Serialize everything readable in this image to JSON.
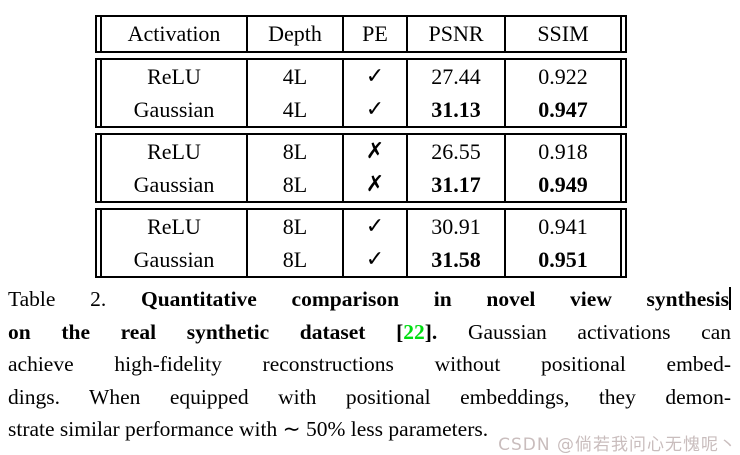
{
  "table": {
    "headers": [
      "Activation",
      "Depth",
      "PE",
      "PSNR",
      "SSIM"
    ],
    "groups": [
      {
        "rows": [
          {
            "activation": "ReLU",
            "depth": "4L",
            "pe": "✓",
            "psnr": "27.44",
            "ssim": "0.922",
            "emphasis": false
          },
          {
            "activation": "Gaussian",
            "depth": "4L",
            "pe": "✓",
            "psnr": "31.13",
            "ssim": "0.947",
            "emphasis": true
          }
        ]
      },
      {
        "rows": [
          {
            "activation": "ReLU",
            "depth": "8L",
            "pe": "✗",
            "psnr": "26.55",
            "ssim": "0.918",
            "emphasis": false
          },
          {
            "activation": "Gaussian",
            "depth": "8L",
            "pe": "✗",
            "psnr": "31.17",
            "ssim": "0.949",
            "emphasis": true
          }
        ]
      },
      {
        "rows": [
          {
            "activation": "ReLU",
            "depth": "8L",
            "pe": "✓",
            "psnr": "30.91",
            "ssim": "0.941",
            "emphasis": false
          },
          {
            "activation": "Gaussian",
            "depth": "8L",
            "pe": "✓",
            "psnr": "31.58",
            "ssim": "0.951",
            "emphasis": true
          }
        ]
      }
    ]
  },
  "caption": {
    "label": "Table 2. ",
    "bold_line1": "Quantitative comparison in novel view synthesis",
    "bold_line2_pre": "on the real synthetic dataset [",
    "cite_number": "22",
    "bold_line2_post": "]. ",
    "line2_rest": "Gaussian activations can",
    "line3": "achieve high-fidelity reconstructions without positional embed-",
    "line4": "dings. When equipped with positional embeddings, they demon-",
    "line5": "strate similar performance with ∼ 50% less parameters."
  },
  "watermark": "CSDN @倘若我问心无愧呢丶",
  "colors": {
    "cite_green": "#00dd11",
    "watermark_gray": "#c9bdbd",
    "text": "#000000",
    "background": "#ffffff"
  }
}
